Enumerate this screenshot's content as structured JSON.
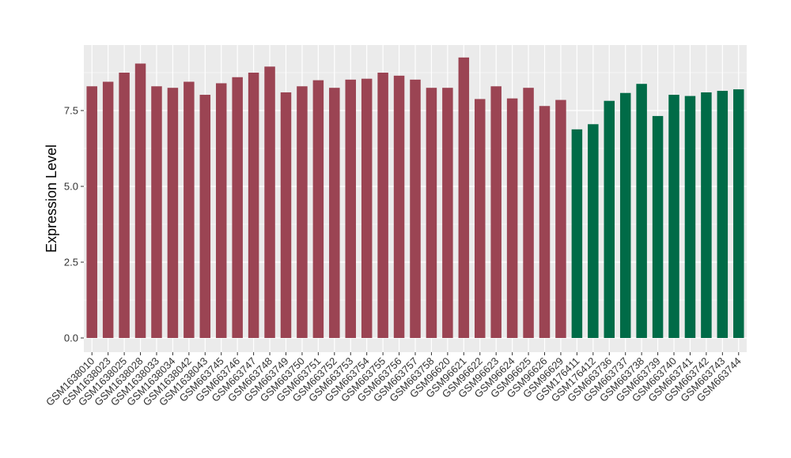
{
  "chart_data": {
    "type": "bar",
    "title": "",
    "xlabel": "",
    "ylabel": "Expression Level",
    "ylim": [
      0,
      9.5
    ],
    "yticks": [
      0.0,
      2.5,
      5.0,
      7.5
    ],
    "ytick_labels": [
      "0.0",
      "2.5",
      "5.0",
      "7.5"
    ],
    "grid": true,
    "legend": "none",
    "colors": {
      "group1": "#9b4453",
      "group2": "#006b47",
      "panel": "#ebebeb",
      "grid": "#ffffff"
    },
    "categories": [
      "GSM1638010",
      "GSM1638023",
      "GSM1638025",
      "GSM1638028",
      "GSM1638033",
      "GSM1638034",
      "GSM1638042",
      "GSM1638043",
      "GSM663745",
      "GSM663746",
      "GSM663747",
      "GSM663748",
      "GSM663749",
      "GSM663750",
      "GSM663751",
      "GSM663752",
      "GSM663753",
      "GSM663754",
      "GSM663755",
      "GSM663756",
      "GSM663757",
      "GSM663758",
      "GSM96620",
      "GSM96621",
      "GSM96622",
      "GSM96623",
      "GSM96624",
      "GSM96625",
      "GSM96626",
      "GSM96629",
      "GSM176411",
      "GSM176412",
      "GSM663736",
      "GSM663737",
      "GSM663738",
      "GSM663739",
      "GSM663740",
      "GSM663741",
      "GSM663742",
      "GSM663743",
      "GSM663744"
    ],
    "values": [
      8.3,
      8.45,
      8.75,
      9.05,
      8.3,
      8.25,
      8.45,
      8.02,
      8.4,
      8.6,
      8.75,
      8.95,
      8.1,
      8.3,
      8.5,
      8.25,
      8.52,
      8.55,
      8.75,
      8.65,
      8.52,
      8.25,
      8.25,
      9.25,
      7.88,
      8.3,
      7.9,
      8.25,
      7.65,
      7.85,
      6.88,
      7.05,
      7.82,
      8.08,
      8.38,
      7.32,
      8.02,
      7.98,
      8.1,
      8.15,
      8.2
    ],
    "groups": [
      1,
      1,
      1,
      1,
      1,
      1,
      1,
      1,
      1,
      1,
      1,
      1,
      1,
      1,
      1,
      1,
      1,
      1,
      1,
      1,
      1,
      1,
      1,
      1,
      1,
      1,
      1,
      1,
      1,
      1,
      2,
      2,
      2,
      2,
      2,
      2,
      2,
      2,
      2,
      2,
      2
    ]
  }
}
